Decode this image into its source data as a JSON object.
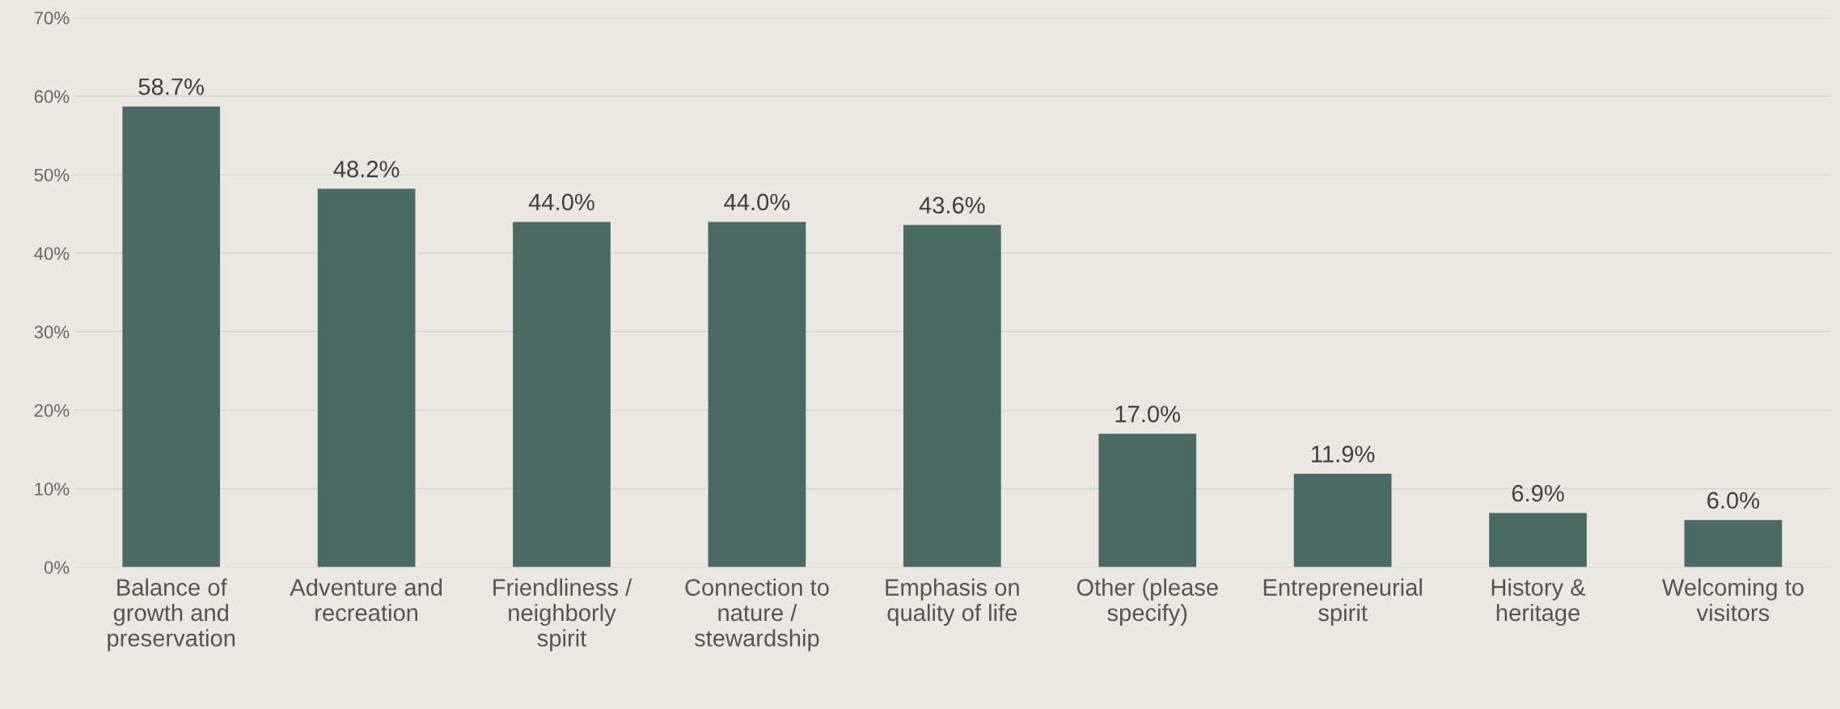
{
  "chart_data": {
    "type": "bar",
    "categories": [
      "Balance of growth and preservation",
      "Adventure and recreation",
      "Friendliness / neighborly spirit",
      "Connection to nature / stewardship",
      "Emphasis on quality of life",
      "Other (please specify)",
      "Entrepreneurial spirit",
      "History & heritage",
      "Welcoming to visitors"
    ],
    "values": [
      58.7,
      48.2,
      44.0,
      44.0,
      43.6,
      17.0,
      11.9,
      6.9,
      6.0
    ],
    "value_labels": [
      "58.7%",
      "48.2%",
      "44.0%",
      "44.0%",
      "43.6%",
      "17.0%",
      "11.9%",
      "6.9%",
      "6.0%"
    ],
    "color": "#4a6b65",
    "ylim": [
      0,
      70
    ],
    "yticks": [
      {
        "value": 0,
        "label": "0%"
      },
      {
        "value": 10,
        "label": "10%"
      },
      {
        "value": 20,
        "label": "20%"
      },
      {
        "value": 30,
        "label": "30%"
      },
      {
        "value": 40,
        "label": "40%"
      },
      {
        "value": 50,
        "label": "50%"
      },
      {
        "value": 60,
        "label": "60%"
      },
      {
        "value": 70,
        "label": "70%"
      }
    ],
    "grid": "y"
  }
}
